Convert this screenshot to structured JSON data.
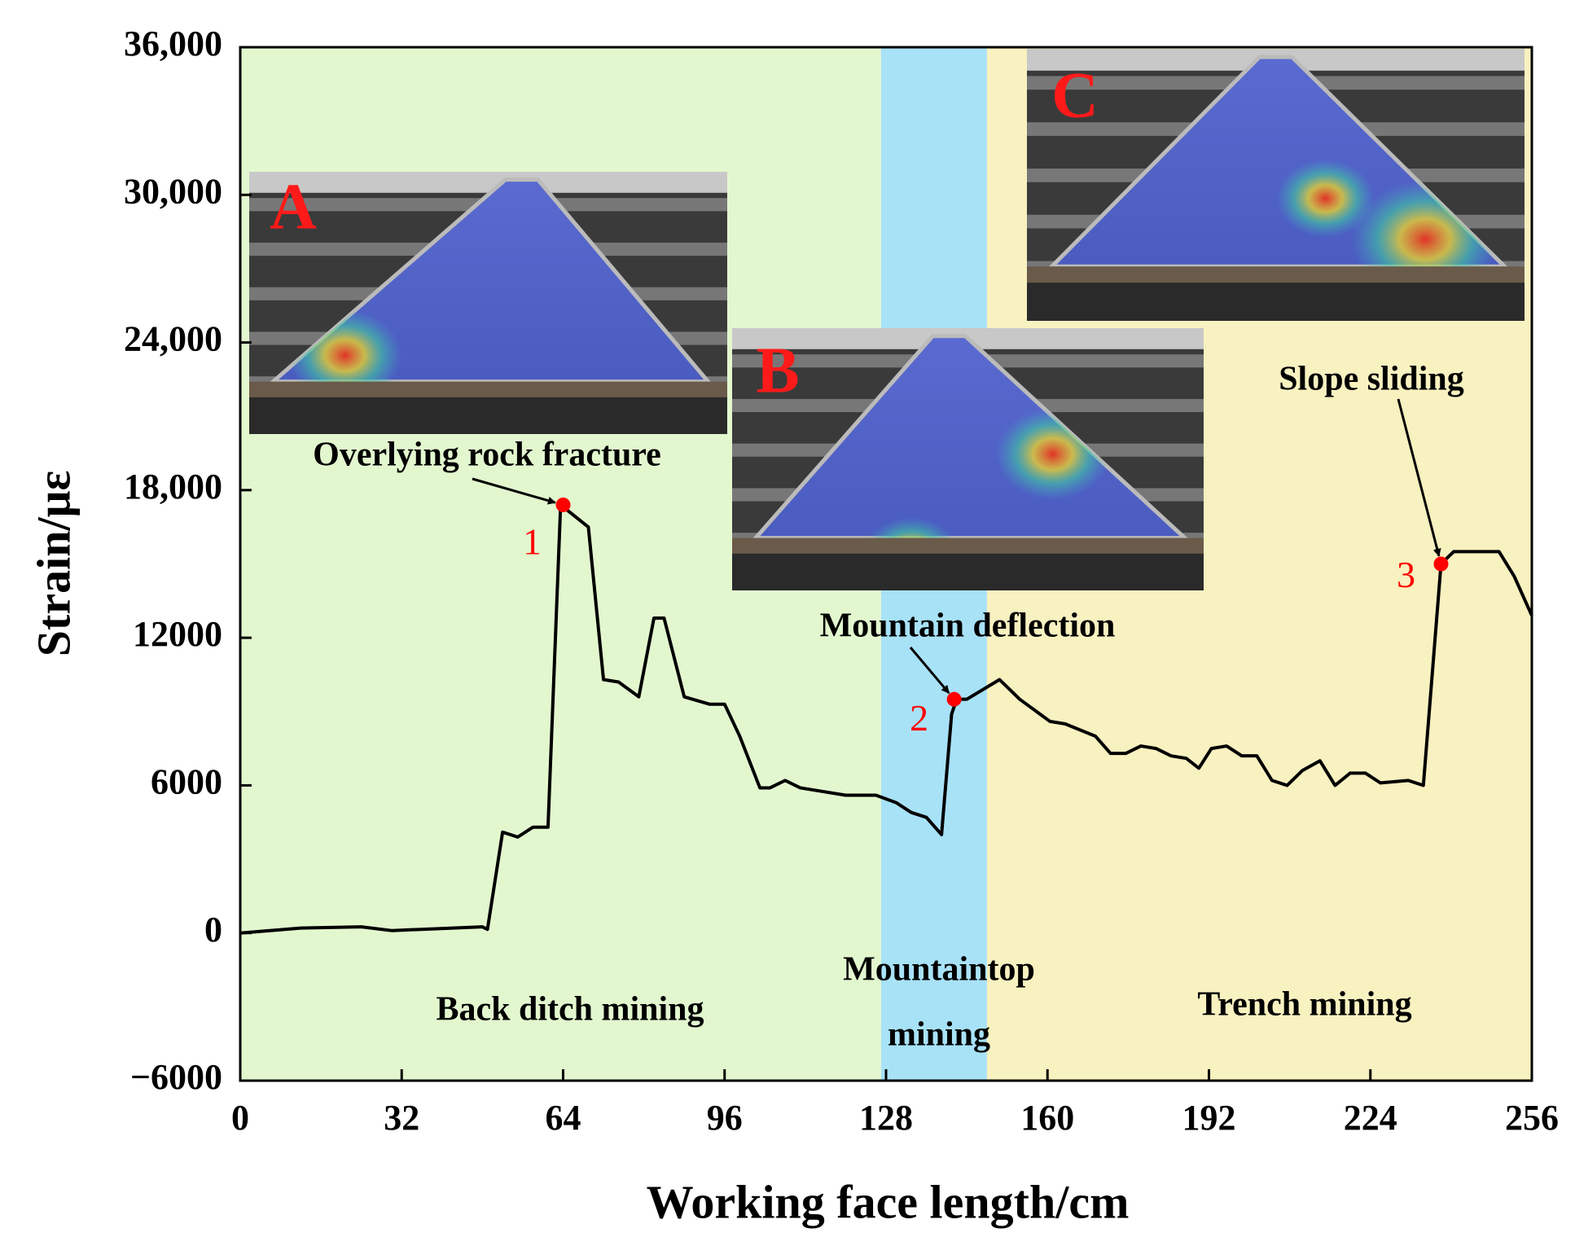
{
  "chart_data": {
    "type": "line",
    "x_label": "Working face length/cm",
    "y_label": "Strain/με",
    "xlim": [
      0,
      256
    ],
    "xticks": [
      0,
      32,
      64,
      96,
      128,
      160,
      192,
      224,
      256
    ],
    "ylim": [
      -6000,
      36000
    ],
    "yticks": [
      {
        "value": -6000,
        "label": "−6000"
      },
      0,
      6000,
      12000,
      {
        "value": 18000,
        "label": "18,000"
      },
      {
        "value": 24000,
        "label": "24,000"
      },
      {
        "value": 30000,
        "label": "30,000"
      },
      {
        "value": 36000,
        "label": "36,000"
      }
    ],
    "color": "#000000",
    "x": [
      0,
      12,
      24,
      30,
      48,
      49,
      52,
      55,
      58,
      61,
      63.5,
      69,
      72,
      75,
      79,
      82,
      84,
      88,
      93,
      96,
      99,
      103,
      105,
      108,
      111,
      120,
      126,
      130,
      133,
      136,
      139,
      141,
      142,
      144,
      150.5,
      154.5,
      160.5,
      163.5,
      169.5,
      172.5,
      175.5,
      178.5,
      181.5,
      184.5,
      187.5,
      190,
      192.5,
      195.5,
      198.5,
      201.5,
      204.5,
      207.5,
      210.5,
      214,
      217,
      220,
      223,
      226,
      231.5,
      234.5,
      238,
      240.5,
      249.5,
      252.5,
      256
    ],
    "values": [
      0,
      200,
      250,
      100,
      250,
      150,
      4100,
      3900,
      4300,
      4300,
      17400,
      16500,
      10300,
      10200,
      9600,
      12800,
      12800,
      9600,
      9300,
      9300,
      8000,
      5900,
      5900,
      6200,
      5900,
      5600,
      5600,
      5300,
      4900,
      4700,
      4000,
      8900,
      9500,
      9500,
      10300,
      9500,
      8600,
      8500,
      8000,
      7300,
      7300,
      7600,
      7500,
      7200,
      7100,
      6700,
      7500,
      7600,
      7200,
      7200,
      6200,
      6000,
      6600,
      7000,
      6000,
      6500,
      6500,
      6100,
      6200,
      6000,
      15000,
      15500,
      15500,
      14500,
      12900
    ],
    "regions": [
      {
        "label_lines": [
          "Back ditch mining"
        ],
        "x": [
          0,
          127
        ],
        "color": "#e3f7cf"
      },
      {
        "label_lines": [
          "Mountaintop",
          "mining"
        ],
        "x": [
          127,
          148
        ],
        "color": "#a8e2f7"
      },
      {
        "label_lines": [
          "Trench mining"
        ],
        "x": [
          148,
          256
        ],
        "color": "#f8f1c0"
      }
    ],
    "annotations": [
      {
        "text": "Overlying rock fracture",
        "number": "1",
        "x": 64,
        "y": 17400
      },
      {
        "text": "Mountain deflection",
        "number": "2",
        "x": 141.5,
        "y": 9500
      },
      {
        "text": "Slope sliding",
        "number": "3",
        "x": 238,
        "y": 15000
      }
    ],
    "point_color": "#ff0000",
    "insets": [
      {
        "letter": "A"
      },
      {
        "letter": "B"
      },
      {
        "letter": "C"
      }
    ]
  }
}
